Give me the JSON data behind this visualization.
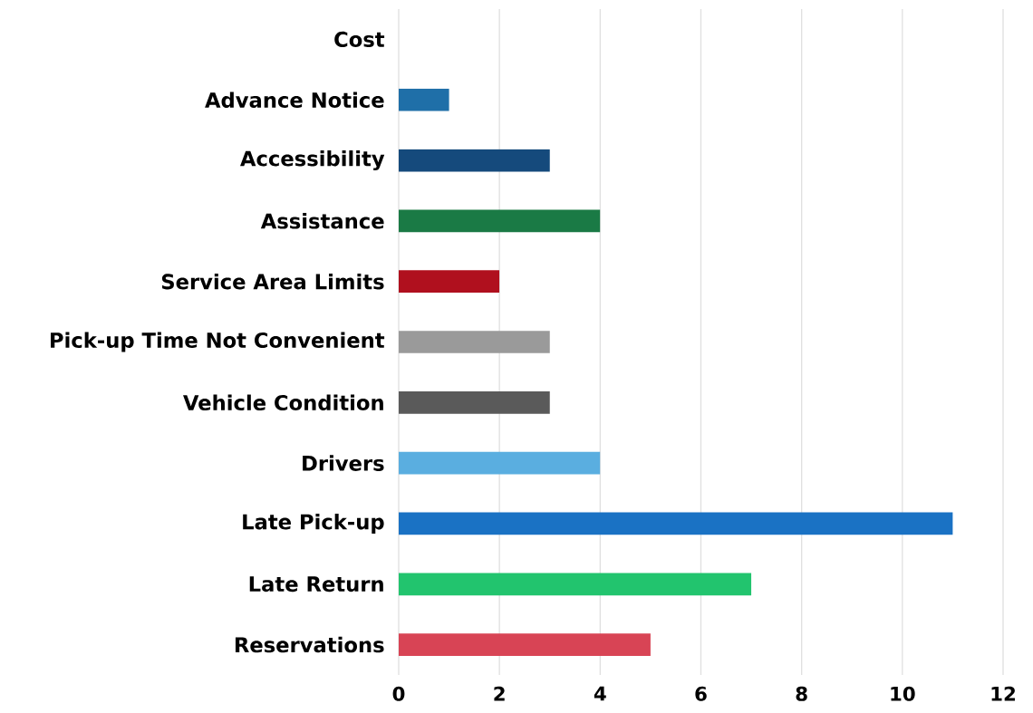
{
  "chart_data": {
    "type": "bar",
    "orientation": "horizontal",
    "categories": [
      "Cost",
      "Advance Notice",
      "Accessibility",
      "Assistance",
      "Service Area Limits",
      "Pick-up Time Not Convenient",
      "Vehicle Condition",
      "Drivers",
      "Late Pick-up",
      "Late Return",
      "Reservations"
    ],
    "values": [
      0,
      1,
      3,
      4,
      2,
      3,
      3,
      4,
      11,
      7,
      5
    ],
    "colors": [
      "#2176ae",
      "#1f6fa8",
      "#154a7c",
      "#1a7a45",
      "#b0101e",
      "#9a9a9a",
      "#5a5a5a",
      "#5aaee0",
      "#1a72c4",
      "#22c46e",
      "#d84455"
    ],
    "xlim": [
      0,
      12
    ],
    "xticks": [
      0,
      2,
      4,
      6,
      8,
      10,
      12
    ],
    "grid": "x"
  }
}
